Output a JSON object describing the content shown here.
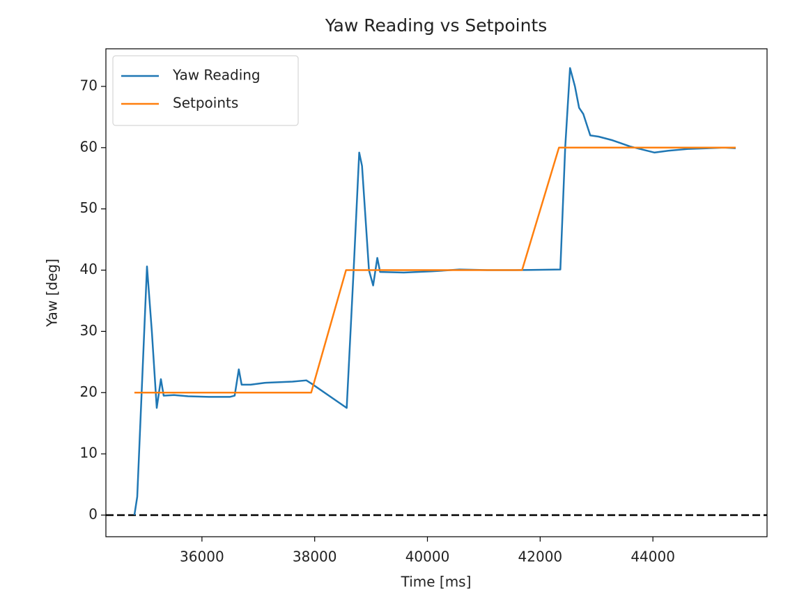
{
  "chart_data": {
    "type": "line",
    "title": "Yaw Reading vs Setpoints",
    "x_label": "Time [ms]",
    "y_label": "Yaw [deg]",
    "xlim": [
      34296,
      46025
    ],
    "ylim": [
      -3.53,
      76.14
    ],
    "xticks": [
      36000,
      38000,
      40000,
      42000,
      44000
    ],
    "yticks": [
      0,
      10,
      20,
      30,
      40,
      50,
      60,
      70
    ],
    "legend": "upper left",
    "reference_line": {
      "value": 0,
      "color": "#000000",
      "style": "dashed"
    },
    "series": [
      {
        "name": "Yaw Reading",
        "color": "#1f77b4",
        "x": [
          34802,
          34852,
          35025,
          35111,
          35198,
          35272,
          35321,
          35506,
          35753,
          36123,
          36494,
          36580,
          36654,
          36704,
          36864,
          37111,
          37605,
          37852,
          37938,
          38568,
          38691,
          38790,
          38840,
          38963,
          39037,
          39111,
          39160,
          39580,
          40074,
          40568,
          41062,
          41556,
          42358,
          42444,
          42530,
          42617,
          42691,
          42765,
          42889,
          43037,
          43284,
          43593,
          44025,
          44272,
          44642,
          45259,
          45469
        ],
        "values": [
          0,
          3,
          40.6,
          30,
          17.5,
          22.2,
          19.5,
          19.6,
          19.4,
          19.3,
          19.3,
          19.5,
          23.8,
          21.3,
          21.3,
          21.6,
          21.8,
          22,
          21.5,
          17.5,
          40,
          59.2,
          57,
          40,
          37.5,
          42,
          39.7,
          39.6,
          39.8,
          40.1,
          40,
          40,
          40.1,
          60,
          73,
          70,
          66.5,
          65.5,
          62,
          61.8,
          61.2,
          60.2,
          59.2,
          59.5,
          59.8,
          60,
          59.9
        ]
      },
      {
        "name": "Setpoints",
        "color": "#ff7f0e",
        "x": [
          34802,
          37938,
          38556,
          41679,
          42333,
          45469
        ],
        "values": [
          20,
          20,
          40,
          40,
          60,
          60
        ]
      }
    ]
  }
}
